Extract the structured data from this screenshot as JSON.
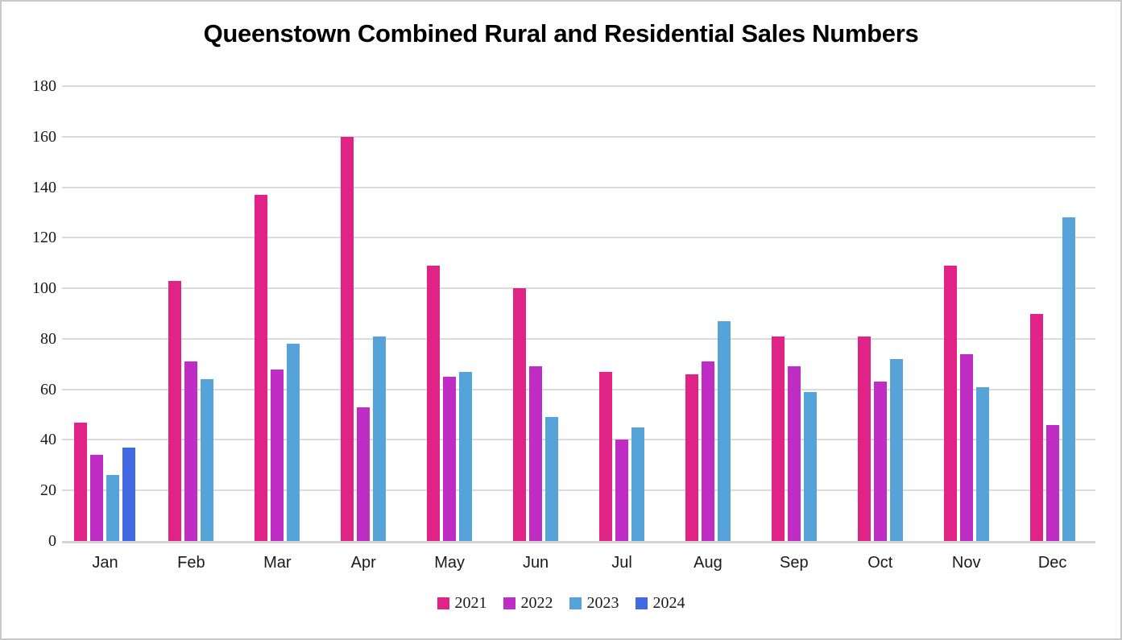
{
  "title": "Queenstown Combined Rural and Residential Sales Numbers",
  "chart_data": {
    "type": "bar",
    "title": "Queenstown Combined Rural and Residential Sales Numbers",
    "categories": [
      "Jan",
      "Feb",
      "Mar",
      "Apr",
      "May",
      "Jun",
      "Jul",
      "Aug",
      "Sep",
      "Oct",
      "Nov",
      "Dec"
    ],
    "series": [
      {
        "name": "2021",
        "color": "#e02387",
        "values": [
          47,
          103,
          137,
          160,
          109,
          100,
          67,
          66,
          81,
          81,
          109,
          90
        ]
      },
      {
        "name": "2022",
        "color": "#bf2dc5",
        "values": [
          34,
          71,
          68,
          53,
          65,
          69,
          40,
          71,
          69,
          63,
          74,
          46
        ]
      },
      {
        "name": "2023",
        "color": "#55a3d9",
        "values": [
          26,
          64,
          78,
          81,
          67,
          49,
          45,
          87,
          59,
          72,
          61,
          128
        ]
      },
      {
        "name": "2024",
        "color": "#4169e1",
        "values": [
          37,
          null,
          null,
          null,
          null,
          null,
          null,
          null,
          null,
          null,
          null,
          null
        ]
      }
    ],
    "ylim": [
      0,
      180
    ],
    "yticks": [
      0,
      20,
      40,
      60,
      80,
      100,
      120,
      140,
      160,
      180
    ],
    "xlabel": "",
    "ylabel": "",
    "grid": true,
    "legend_position": "bottom",
    "legend_entries": [
      "2021",
      "2022",
      "2023",
      "2024"
    ]
  },
  "colors": {
    "gridline": "#dbdbdb",
    "axis_line": "#d4d4d4",
    "frame_border": "#c9c9c9",
    "text": "#1a1a1a"
  }
}
